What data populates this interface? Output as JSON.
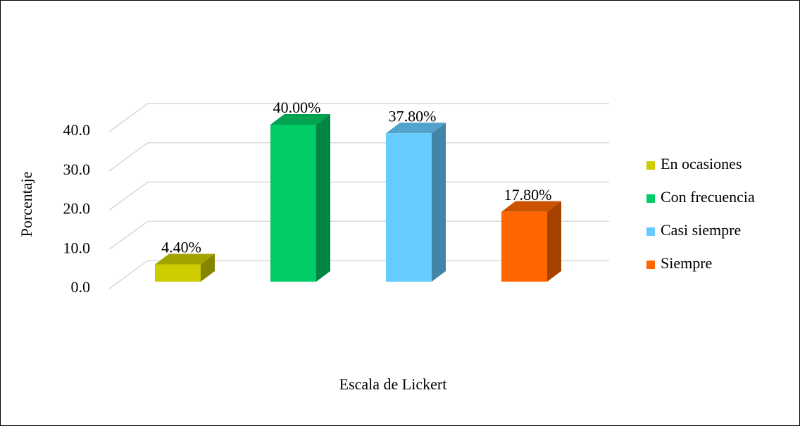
{
  "chart_data": {
    "type": "bar3d",
    "y_label": "Porcentaje",
    "x_label": "Escala de Lickert",
    "categories": [
      null
    ],
    "series": [
      {
        "name": "En ocasiones",
        "color": "#cccc00",
        "values": [
          4.4
        ],
        "value_labels": [
          "4.40%"
        ]
      },
      {
        "name": "Con frecuencia",
        "color": "#00cc66",
        "values": [
          40.0
        ],
        "value_labels": [
          "40.00%"
        ]
      },
      {
        "name": "Casi siempre",
        "color": "#66ccff",
        "values": [
          37.8
        ],
        "value_labels": [
          "37.80%"
        ]
      },
      {
        "name": "Siempre",
        "color": "#ff6600",
        "values": [
          17.8
        ],
        "value_labels": [
          "17.80%"
        ]
      }
    ],
    "ylim": [
      0,
      40
    ],
    "yticks": [
      {
        "value": 0,
        "label": "0.0"
      },
      {
        "value": 10,
        "label": "10.0"
      },
      {
        "value": 20,
        "label": "20.0"
      },
      {
        "value": 30,
        "label": "30.0"
      },
      {
        "value": 40,
        "label": "40.0"
      }
    ],
    "grid": true,
    "legend": "right"
  }
}
